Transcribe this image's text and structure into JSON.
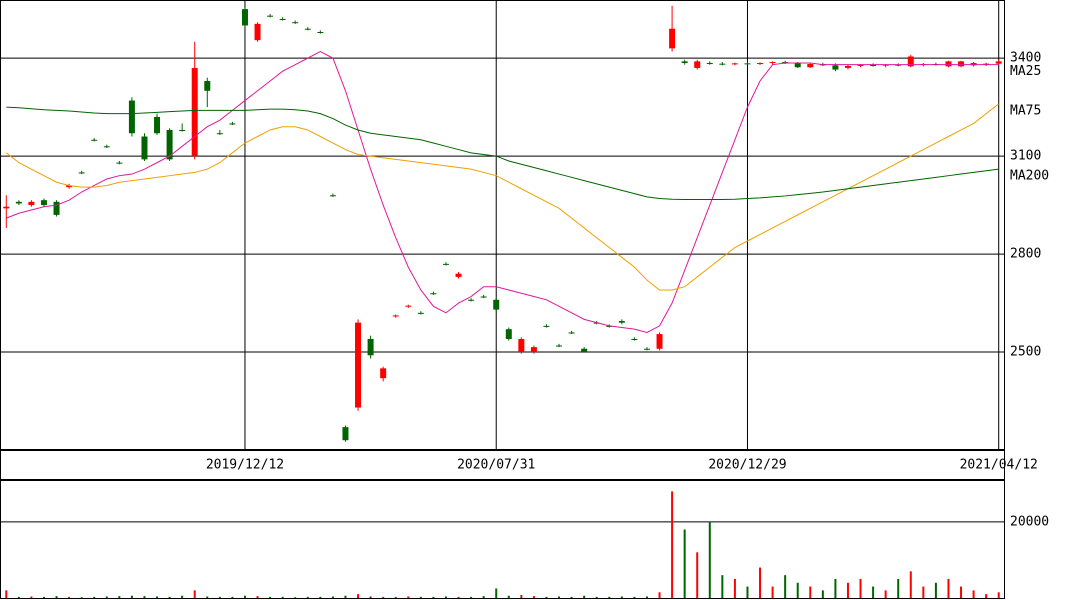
{
  "chart_data": {
    "type": "candlestick",
    "categories": [
      null,
      null,
      null,
      null,
      null,
      null,
      null,
      null,
      null,
      null,
      null,
      null,
      null,
      null,
      null,
      null,
      null,
      null,
      null,
      "2019/12/12",
      null,
      null,
      null,
      null,
      null,
      null,
      null,
      null,
      null,
      null,
      null,
      null,
      null,
      null,
      null,
      null,
      null,
      null,
      null,
      "2020/07/31",
      null,
      null,
      null,
      null,
      null,
      null,
      null,
      null,
      null,
      null,
      null,
      null,
      null,
      null,
      null,
      null,
      null,
      null,
      null,
      "2020/12/29",
      null,
      null,
      null,
      null,
      null,
      null,
      null,
      null,
      null,
      null,
      null,
      null,
      null,
      null,
      null,
      null,
      null,
      null,
      null,
      "2021/04/12"
    ],
    "open": [
      2940,
      2960,
      2950,
      2965,
      2960,
      3005,
      3050,
      3150,
      3130,
      3080,
      3270,
      3160,
      3220,
      3180,
      3180,
      3100,
      3330,
      3170,
      3200,
      3550,
      3455,
      3530,
      3520,
      3510,
      3490,
      3480,
      2980,
      2270,
      2330,
      2540,
      2420,
      2610,
      2640,
      2620,
      2680,
      2770,
      2730,
      2660,
      2670,
      2660,
      2570,
      2500,
      2500,
      2580,
      2520,
      2560,
      2510,
      2590,
      2580,
      2595,
      2540,
      2510,
      2510,
      3430,
      3390,
      3370,
      3385,
      3383,
      3382,
      3384,
      3383,
      3385,
      3388,
      3384,
      3372,
      3382,
      3378,
      3370,
      3376,
      3379,
      3377,
      3380,
      3375,
      3380,
      3382,
      3375,
      3375,
      3378,
      3380,
      3383
    ],
    "high": [
      2980,
      2965,
      2965,
      2970,
      2965,
      3015,
      3055,
      3155,
      3135,
      3085,
      3280,
      3170,
      3230,
      3185,
      3200,
      3450,
      3340,
      3180,
      3205,
      3555,
      3510,
      3535,
      3525,
      3515,
      3495,
      3485,
      2985,
      2275,
      2600,
      2550,
      2455,
      2615,
      2645,
      2625,
      2685,
      2775,
      2745,
      2665,
      2675,
      2665,
      2575,
      2545,
      2520,
      2585,
      2525,
      2565,
      2515,
      2595,
      2585,
      2600,
      2545,
      2515,
      2560,
      3560,
      3395,
      3395,
      3390,
      3388,
      3386,
      3388,
      3387,
      3390,
      3392,
      3388,
      3385,
      3386,
      3384,
      3380,
      3382,
      3384,
      3382,
      3384,
      3410,
      3385,
      3386,
      3392,
      3392,
      3388,
      3386,
      3395
    ],
    "low": [
      2880,
      2950,
      2945,
      2945,
      2915,
      3000,
      3045,
      3145,
      3125,
      3075,
      3160,
      3085,
      3165,
      3085,
      3175,
      3090,
      3250,
      3165,
      3195,
      3495,
      3450,
      3525,
      3515,
      3505,
      3485,
      3475,
      2975,
      2225,
      2320,
      2480,
      2410,
      2605,
      2635,
      2615,
      2675,
      2765,
      2725,
      2655,
      2665,
      2625,
      2535,
      2495,
      2495,
      2575,
      2515,
      2555,
      2500,
      2585,
      2575,
      2585,
      2535,
      2505,
      2505,
      3420,
      3380,
      3365,
      3380,
      3378,
      3378,
      3380,
      3379,
      3380,
      3382,
      3370,
      3370,
      3376,
      3360,
      3365,
      3372,
      3374,
      3372,
      3375,
      3372,
      3375,
      3377,
      3372,
      3372,
      3374,
      3376,
      3380
    ],
    "close": [
      2945,
      2955,
      2960,
      2950,
      2920,
      3010,
      3048,
      3148,
      3128,
      3078,
      3170,
      3090,
      3170,
      3090,
      3178,
      3370,
      3300,
      3168,
      3198,
      3500,
      3505,
      3528,
      3518,
      3508,
      3488,
      3478,
      2978,
      2230,
      2590,
      2490,
      2450,
      2612,
      2642,
      2618,
      2678,
      2768,
      2740,
      2658,
      2668,
      2630,
      2540,
      2540,
      2515,
      2578,
      2518,
      2558,
      2500,
      2588,
      2578,
      2590,
      2538,
      2508,
      2555,
      3490,
      3385,
      3390,
      3383,
      3382,
      3384,
      3383,
      3385,
      3388,
      3384,
      3372,
      3382,
      3378,
      3365,
      3376,
      3379,
      3377,
      3380,
      3378,
      3405,
      3382,
      3380,
      3390,
      3390,
      3385,
      3383,
      3390
    ],
    "volume": [
      2000,
      300,
      400,
      300,
      500,
      300,
      200,
      300,
      400,
      500,
      600,
      500,
      400,
      300,
      600,
      2000,
      400,
      300,
      300,
      600,
      500,
      300,
      300,
      200,
      300,
      300,
      400,
      600,
      1000,
      400,
      300,
      300,
      400,
      300,
      300,
      400,
      300,
      300,
      500,
      2500,
      600,
      800,
      500,
      300,
      400,
      300,
      600,
      300,
      300,
      400,
      300,
      400,
      1500,
      28000,
      18000,
      12000,
      20000,
      6000,
      5000,
      3000,
      8000,
      3000,
      6000,
      4000,
      3000,
      2000,
      5000,
      4000,
      5000,
      3000,
      2000,
      5000,
      7000,
      3000,
      4000,
      5000,
      3000,
      2000,
      1000,
      1500
    ],
    "up_color": "#ff0000",
    "down_color": "#006400",
    "series": [
      {
        "name": "MA25",
        "color": "#e0189a",
        "values": [
          2910,
          2925,
          2935,
          2945,
          2950,
          2965,
          2990,
          3010,
          3030,
          3040,
          3045,
          3060,
          3080,
          3100,
          3130,
          3160,
          3190,
          3210,
          3240,
          3270,
          3300,
          3330,
          3360,
          3380,
          3400,
          3420,
          3400,
          3300,
          3180,
          3060,
          2950,
          2850,
          2760,
          2690,
          2640,
          2620,
          2650,
          2670,
          2700,
          2700,
          2690,
          2680,
          2670,
          2660,
          2640,
          2620,
          2600,
          2590,
          2580,
          2575,
          2570,
          2560,
          2580,
          2650,
          2750,
          2850,
          2950,
          3050,
          3150,
          3250,
          3330,
          3380,
          3385,
          3385,
          3385,
          3380,
          3380,
          3380,
          3380,
          3380,
          3380,
          3380,
          3380,
          3380,
          3380,
          3380,
          3380,
          3380,
          3380,
          3380
        ]
      },
      {
        "name": "MA75",
        "color": "#f0a000",
        "values": [
          3110,
          3080,
          3060,
          3040,
          3020,
          3010,
          3005,
          3005,
          3010,
          3020,
          3025,
          3030,
          3035,
          3040,
          3045,
          3050,
          3060,
          3080,
          3110,
          3140,
          3160,
          3180,
          3190,
          3190,
          3180,
          3160,
          3140,
          3120,
          3105,
          3100,
          3095,
          3090,
          3085,
          3080,
          3075,
          3070,
          3065,
          3060,
          3050,
          3040,
          3020,
          3000,
          2980,
          2960,
          2940,
          2910,
          2880,
          2850,
          2820,
          2790,
          2760,
          2720,
          2690,
          2690,
          2700,
          2730,
          2760,
          2790,
          2820,
          2840,
          2860,
          2880,
          2900,
          2920,
          2940,
          2960,
          2980,
          3000,
          3020,
          3040,
          3060,
          3080,
          3100,
          3120,
          3140,
          3160,
          3180,
          3200,
          3230,
          3260
        ]
      },
      {
        "name": "MA200",
        "color": "#006400",
        "values": [
          3250,
          3248,
          3245,
          3242,
          3240,
          3238,
          3235,
          3232,
          3230,
          3230,
          3230,
          3232,
          3234,
          3236,
          3238,
          3240,
          3240,
          3240,
          3240,
          3240,
          3242,
          3244,
          3244,
          3242,
          3238,
          3230,
          3215,
          3195,
          3180,
          3170,
          3165,
          3160,
          3155,
          3150,
          3140,
          3130,
          3120,
          3110,
          3105,
          3100,
          3085,
          3075,
          3065,
          3055,
          3045,
          3035,
          3025,
          3015,
          3005,
          2995,
          2985,
          2975,
          2970,
          2968,
          2967,
          2967,
          2967,
          2967,
          2968,
          2970,
          2972,
          2975,
          2978,
          2982,
          2986,
          2990,
          2995,
          3000,
          3005,
          3010,
          3015,
          3020,
          3025,
          3030,
          3035,
          3040,
          3045,
          3050,
          3055,
          3060
        ]
      }
    ],
    "ylim": [
      2200,
      3578
    ],
    "yticks": [
      3400,
      3100,
      2800,
      2500
    ],
    "vlim": [
      0,
      31000
    ],
    "vticks": [
      20000
    ],
    "grid": true
  }
}
